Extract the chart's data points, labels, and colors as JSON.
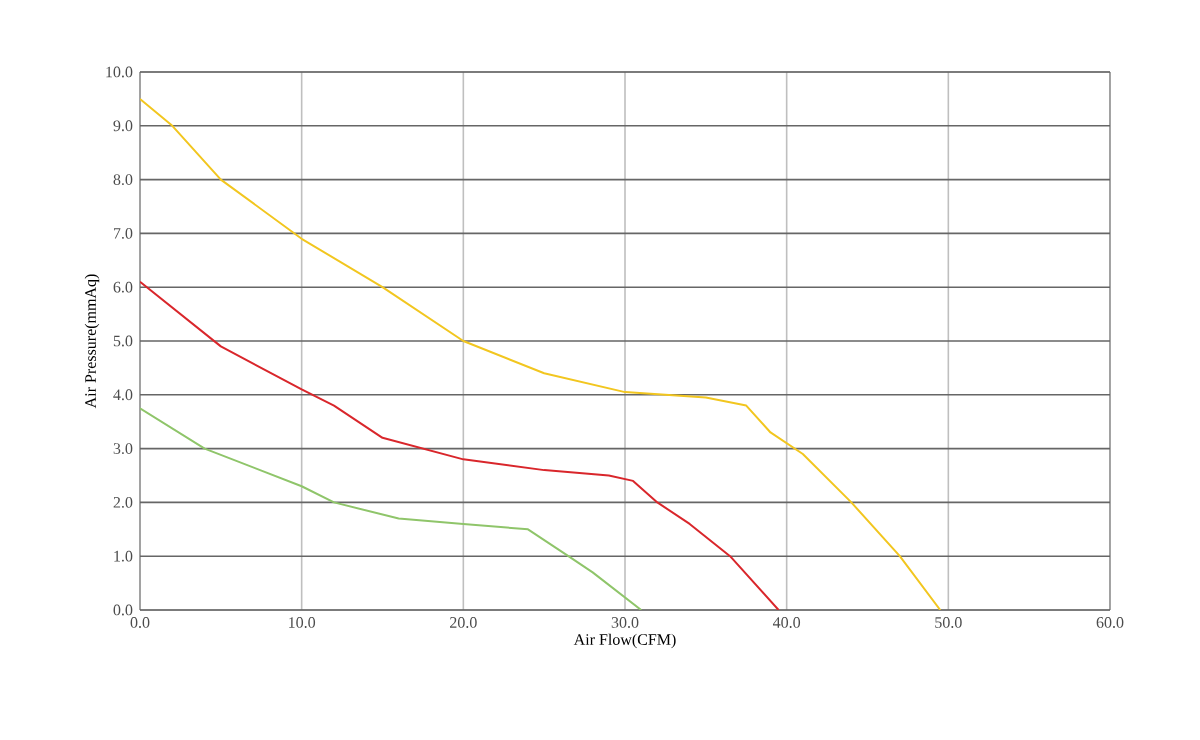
{
  "chart_data": {
    "type": "line",
    "xlabel": "Air Flow(CFM)",
    "ylabel": "Air Pressure(mmAq)",
    "xlim": [
      0,
      60
    ],
    "ylim": [
      0,
      10
    ],
    "xticks": [
      {
        "value": 0,
        "label": "0.0"
      },
      {
        "value": 10,
        "label": "10.0"
      },
      {
        "value": 20,
        "label": "20.0"
      },
      {
        "value": 30,
        "label": "30.0"
      },
      {
        "value": 40,
        "label": "40.0"
      },
      {
        "value": 50,
        "label": "50.0"
      },
      {
        "value": 60,
        "label": "60.0"
      }
    ],
    "yticks": [
      {
        "value": 0,
        "label": "0.0"
      },
      {
        "value": 1,
        "label": "1.0"
      },
      {
        "value": 2,
        "label": "2.0"
      },
      {
        "value": 3,
        "label": "3.0"
      },
      {
        "value": 4,
        "label": "4.0"
      },
      {
        "value": 5,
        "label": "5.0"
      },
      {
        "value": 6,
        "label": "6.0"
      },
      {
        "value": 7,
        "label": "7.0"
      },
      {
        "value": 8,
        "label": "8.0"
      },
      {
        "value": 9,
        "label": "9.0"
      },
      {
        "value": 10,
        "label": "10.0"
      }
    ],
    "grid": true,
    "marker": "none",
    "line_style": "solid",
    "series": [
      {
        "color": "#f2c61f",
        "x": [
          0,
          2,
          5,
          10,
          15,
          20,
          25,
          30,
          35,
          37.5,
          39,
          41,
          44,
          47,
          49.5
        ],
        "values": [
          9.5,
          9.0,
          8.0,
          6.9,
          6.0,
          5.0,
          4.4,
          4.05,
          3.95,
          3.8,
          3.3,
          2.9,
          2.0,
          1.0,
          0
        ]
      },
      {
        "color": "#d9262b",
        "x": [
          0,
          5,
          10,
          12,
          15,
          20,
          25,
          29,
          30.5,
          32,
          34,
          36.5,
          39.5
        ],
        "values": [
          6.1,
          4.9,
          4.1,
          3.8,
          3.2,
          2.8,
          2.6,
          2.5,
          2.4,
          2.0,
          1.6,
          1.0,
          0
        ]
      },
      {
        "color": "#8fc56a",
        "x": [
          0,
          4,
          10,
          12,
          16,
          20,
          24,
          26.5,
          28,
          31
        ],
        "values": [
          3.75,
          3.0,
          2.3,
          2.0,
          1.7,
          1.6,
          1.5,
          1.0,
          0.7,
          0
        ]
      }
    ]
  }
}
